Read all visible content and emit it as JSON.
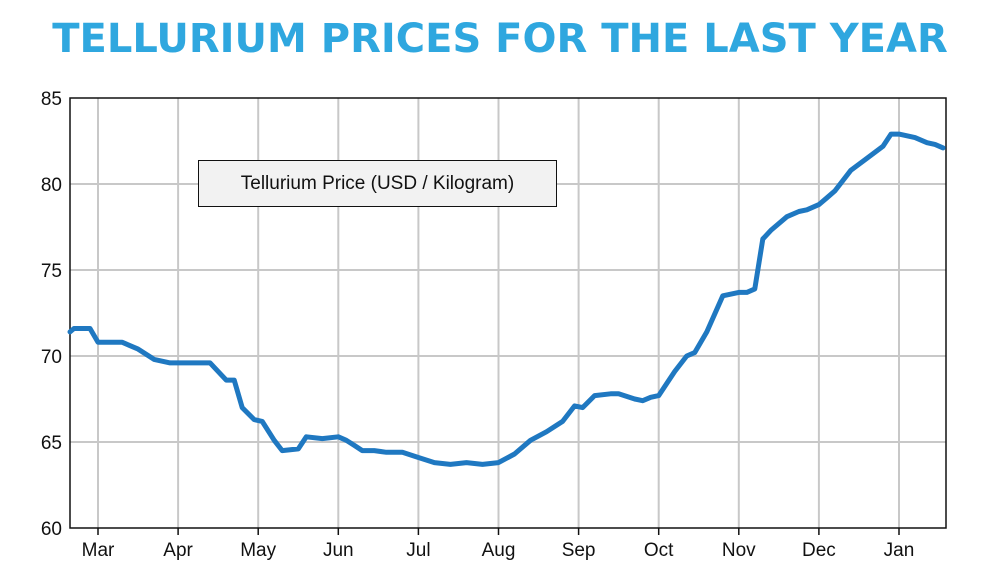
{
  "chart_data": {
    "type": "line",
    "title": "TELLURIUM PRICES FOR THE LAST YEAR",
    "xlabel": "",
    "ylabel": "",
    "ylim": [
      60,
      85
    ],
    "yticks": [
      "60",
      "65",
      "70",
      "75",
      "80",
      "85"
    ],
    "xticks": [
      "Mar",
      "Apr",
      "May",
      "Jun",
      "Jul",
      "Aug",
      "Sep",
      "Oct",
      "Nov",
      "Dec",
      "Jan"
    ],
    "grid": true,
    "legend": "upper-left",
    "colors": {
      "title": "#2fa7df",
      "line": "#1f78c1",
      "grid": "#c8c8c8"
    },
    "series": [
      {
        "name": "Tellurium Price (USD / Kilogram)",
        "x": [
          -0.4,
          -0.3,
          -0.2,
          -0.1,
          0.0,
          0.1,
          0.3,
          0.5,
          0.7,
          0.9,
          1.0,
          1.1,
          1.2,
          1.4,
          1.6,
          1.7,
          1.8,
          1.95,
          2.05,
          2.2,
          2.3,
          2.5,
          2.6,
          2.8,
          3.0,
          3.1,
          3.2,
          3.3,
          3.45,
          3.6,
          3.7,
          3.8,
          4.0,
          4.2,
          4.4,
          4.6,
          4.8,
          5.0,
          5.2,
          5.4,
          5.6,
          5.8,
          5.95,
          6.05,
          6.2,
          6.4,
          6.5,
          6.7,
          6.8,
          6.9,
          7.0,
          7.2,
          7.35,
          7.45,
          7.6,
          7.8,
          8.0,
          8.1,
          8.2,
          8.3,
          8.4,
          8.6,
          8.75,
          8.85,
          9.0,
          9.1,
          9.2,
          9.4,
          9.6,
          9.8,
          9.9,
          10.0,
          10.2,
          10.35,
          10.45,
          10.55
        ],
        "values": [
          71.4,
          71.6,
          71.6,
          71.6,
          70.8,
          70.8,
          70.8,
          70.4,
          69.8,
          69.6,
          69.6,
          69.6,
          69.6,
          69.6,
          68.6,
          68.6,
          67.0,
          66.3,
          66.2,
          65.1,
          64.5,
          64.6,
          65.3,
          65.2,
          65.3,
          65.1,
          64.8,
          64.5,
          64.5,
          64.4,
          64.4,
          64.4,
          64.1,
          63.8,
          63.7,
          63.8,
          63.7,
          63.8,
          64.3,
          65.1,
          65.6,
          66.2,
          67.1,
          67.0,
          67.7,
          67.8,
          67.8,
          67.5,
          67.4,
          67.6,
          67.7,
          69.1,
          70.0,
          70.2,
          71.4,
          73.5,
          73.7,
          73.7,
          73.9,
          76.8,
          77.3,
          78.1,
          78.4,
          78.5,
          78.8,
          79.2,
          79.6,
          80.8,
          81.5,
          82.2,
          82.9,
          82.9,
          82.7,
          82.4,
          82.3,
          82.1
        ]
      }
    ]
  }
}
